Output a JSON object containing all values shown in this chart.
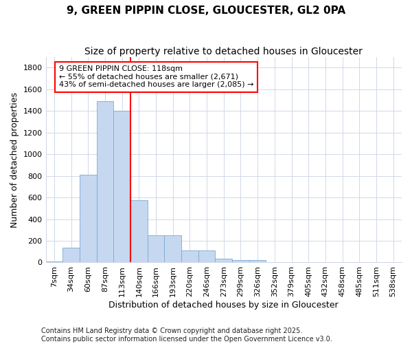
{
  "title_line1": "9, GREEN PIPPIN CLOSE, GLOUCESTER, GL2 0PA",
  "title_line2": "Size of property relative to detached houses in Gloucester",
  "xlabel": "Distribution of detached houses by size in Gloucester",
  "ylabel": "Number of detached properties",
  "categories": [
    "7sqm",
    "34sqm",
    "60sqm",
    "87sqm",
    "113sqm",
    "140sqm",
    "166sqm",
    "193sqm",
    "220sqm",
    "246sqm",
    "273sqm",
    "299sqm",
    "326sqm",
    "352sqm",
    "379sqm",
    "405sqm",
    "432sqm",
    "458sqm",
    "485sqm",
    "511sqm",
    "538sqm"
  ],
  "values": [
    10,
    135,
    810,
    1490,
    1400,
    575,
    250,
    250,
    110,
    110,
    35,
    25,
    25,
    0,
    0,
    0,
    0,
    0,
    0,
    0,
    0
  ],
  "bar_facecolor": "#c5d8f0",
  "bar_edgecolor": "#7aaad0",
  "vline_index": 4,
  "vline_color": "red",
  "annotation_text": "9 GREEN PIPPIN CLOSE: 118sqm\n← 55% of detached houses are smaller (2,671)\n43% of semi-detached houses are larger (2,085) →",
  "annotation_box_facecolor": "white",
  "annotation_box_edgecolor": "red",
  "ylim": [
    0,
    1900
  ],
  "yticks": [
    0,
    200,
    400,
    600,
    800,
    1000,
    1200,
    1400,
    1600,
    1800
  ],
  "bg_color": "#ffffff",
  "grid_color": "#d0d8e8",
  "footer_text": "Contains HM Land Registry data © Crown copyright and database right 2025.\nContains public sector information licensed under the Open Government Licence v3.0.",
  "title1_fontsize": 11,
  "title2_fontsize": 10,
  "axis_label_fontsize": 9,
  "tick_fontsize": 8,
  "annotation_fontsize": 8,
  "footer_fontsize": 7
}
